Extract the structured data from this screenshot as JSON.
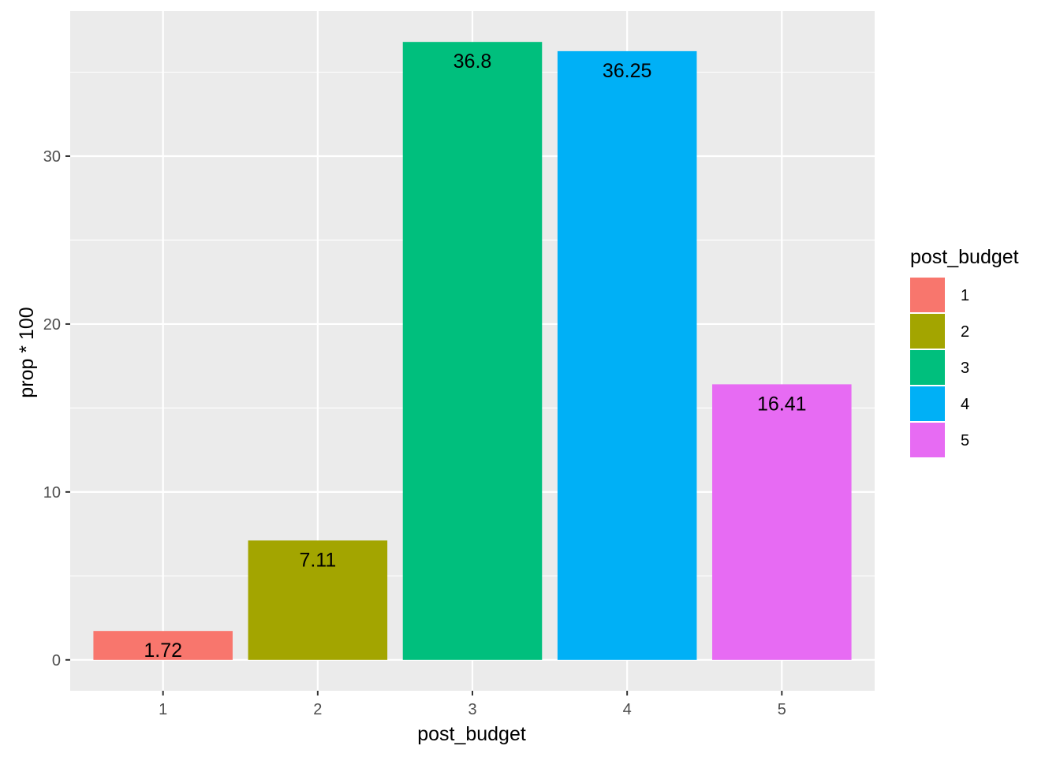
{
  "chart_data": {
    "type": "bar",
    "categories": [
      "1",
      "2",
      "3",
      "4",
      "5"
    ],
    "values": [
      1.72,
      7.11,
      36.8,
      36.25,
      16.41
    ],
    "data_labels": [
      "1.72",
      "7.11",
      "36.8",
      "36.25",
      "16.41"
    ],
    "colors": [
      "#F8766D",
      "#A3A500",
      "#00BF7D",
      "#00B0F6",
      "#E76BF3"
    ],
    "xlabel": "post_budget",
    "ylabel": "prop * 100",
    "ylim": [
      -1.84,
      38.64
    ],
    "yticks": [
      0,
      10,
      20,
      30
    ],
    "ytick_labels": [
      "0",
      "10",
      "20",
      "30"
    ],
    "grid": true,
    "panel_background": "#EBEBEB",
    "grid_color": "#FFFFFF",
    "legend": {
      "title": "post_budget",
      "position": "right",
      "entries": [
        "1",
        "2",
        "3",
        "4",
        "5"
      ]
    }
  }
}
